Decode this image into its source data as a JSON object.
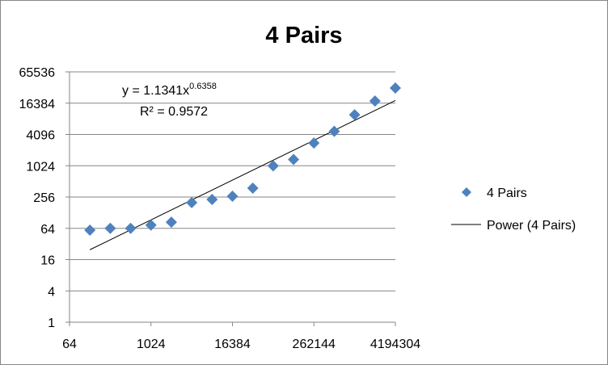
{
  "chart_data": {
    "type": "scatter",
    "title": "4 Pairs",
    "xlabel": "",
    "ylabel": "",
    "x_scale": "log2",
    "y_scale": "log2",
    "xlim": [
      64,
      4194304
    ],
    "ylim": [
      1,
      65536
    ],
    "x_ticks": [
      64,
      1024,
      16384,
      262144,
      4194304
    ],
    "x_tick_labels": [
      "64",
      "1024",
      "16384",
      "262144",
      "4194304"
    ],
    "y_ticks": [
      1,
      4,
      16,
      64,
      256,
      1024,
      4096,
      16384,
      65536
    ],
    "y_tick_labels": [
      "1",
      "4",
      "16",
      "64",
      "256",
      "1024",
      "4096",
      "16384",
      "65536"
    ],
    "grid": "horizontal",
    "series": [
      {
        "name": "4 Pairs",
        "marker": "diamond",
        "color": "#4F81BD",
        "x": [
          128,
          256,
          512,
          1024,
          2048,
          4096,
          8192,
          16384,
          32768,
          65536,
          131072,
          262144,
          524288,
          1048576,
          2097152,
          4194304
        ],
        "y": [
          59,
          64,
          64,
          74,
          84,
          200,
          230,
          265,
          380,
          1020,
          1350,
          2800,
          4700,
          9800,
          18000,
          32000
        ]
      }
    ],
    "trendline": {
      "name": "Power (4 Pairs)",
      "type": "power",
      "coef": 1.1341,
      "exponent": 0.6358,
      "x_range": [
        128,
        4194304
      ],
      "color": "#000000"
    },
    "annotations": {
      "equation_prefix": "y = 1.1341x",
      "equation_exponent": "0.6358",
      "r_squared": "R² = 0.9572"
    },
    "legend": {
      "position": "right",
      "entries": [
        "4 Pairs",
        "Power (4 Pairs)"
      ]
    }
  }
}
